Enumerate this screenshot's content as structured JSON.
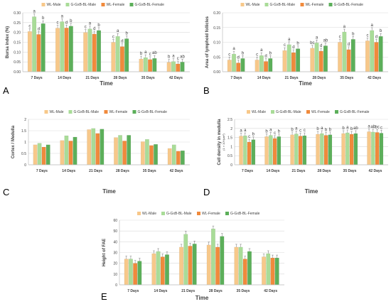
{
  "colors": {
    "WL-Male": "#f7c88a",
    "G-GxB-BL-Male": "#a9dc98",
    "WL-Female": "#f08a3c",
    "G-GxB-BL-Female": "#5caf5a",
    "grid": "#d9d9d9",
    "axis": "#bfbfbf",
    "text": "#404040"
  },
  "chart_data": [
    {
      "type": "bar",
      "panel_label": "A",
      "title": "",
      "xlabel": "Time",
      "ylabel": "Bursa index (%)",
      "categories": [
        "7 Days",
        "14 Days",
        "21 Days",
        "28 Days",
        "35 Days",
        "42 Days"
      ],
      "ylim": [
        0,
        0.3
      ],
      "yticks": [
        "0.00",
        "0.05",
        "0.10",
        "0.15",
        "0.20",
        "0.25",
        "0.30"
      ],
      "legend": "top",
      "error_bars": true,
      "series": [
        {
          "name": "WL-Male",
          "values": [
            0.205,
            0.222,
            0.2,
            0.15,
            0.065,
            0.048
          ]
        },
        {
          "name": "G-GxB-BL-Male",
          "values": [
            0.28,
            0.255,
            0.218,
            0.18,
            0.072,
            0.052
          ]
        },
        {
          "name": "WL-Female",
          "values": [
            0.19,
            0.223,
            0.192,
            0.128,
            0.062,
            0.04
          ]
        },
        {
          "name": "G-GxB-BL-Female",
          "values": [
            0.245,
            0.232,
            0.21,
            0.168,
            0.068,
            0.049
          ]
        }
      ],
      "letters": [
        [
          "c",
          "a",
          "d",
          "b"
        ],
        [
          "c",
          "a",
          "d",
          "b"
        ],
        [
          "c",
          "a",
          "d",
          "b"
        ],
        [
          "c",
          "a",
          "d",
          "b"
        ],
        [
          "b",
          "a",
          "c",
          "ab"
        ],
        [
          "b",
          "a",
          "c",
          "ab"
        ]
      ]
    },
    {
      "type": "bar",
      "panel_label": "B",
      "title": "",
      "xlabel": "Time",
      "ylabel": "Area of lymphoid follicles",
      "categories": [
        "7 Days",
        "14 Days",
        "21 Days",
        "28 Days",
        "35 Days",
        "42 Days"
      ],
      "ylim": [
        0,
        0.2
      ],
      "yticks": [
        "0.00",
        "0.05",
        "0.10",
        "0.15",
        "0.20"
      ],
      "legend": "top",
      "error_bars": true,
      "series": [
        {
          "name": "WL-Male",
          "values": [
            0.04,
            0.04,
            0.072,
            0.08,
            0.1,
            0.105
          ]
        },
        {
          "name": "G-GxB-BL-Male",
          "values": [
            0.06,
            0.055,
            0.092,
            0.098,
            0.135,
            0.14
          ]
        },
        {
          "name": "WL-Female",
          "values": [
            0.03,
            0.035,
            0.065,
            0.07,
            0.075,
            0.1
          ]
        },
        {
          "name": "G-GxB-BL-Female",
          "values": [
            0.045,
            0.045,
            0.078,
            0.088,
            0.11,
            0.12
          ]
        }
      ],
      "letters": [
        [
          "c",
          "a",
          "d",
          "b"
        ],
        [
          "c",
          "a",
          "d",
          "b"
        ],
        [
          "c",
          "a",
          "d",
          "b"
        ],
        [
          "bc",
          "a",
          "d",
          "ab"
        ],
        [
          "c",
          "a",
          "d",
          "b"
        ],
        [
          "c",
          "a",
          "d",
          "b"
        ]
      ]
    },
    {
      "type": "bar",
      "panel_label": "C",
      "title": "",
      "xlabel": "Time",
      "ylabel": "Cortex / Medulla",
      "categories": [
        "7 Days",
        "14 Days",
        "21 Days",
        "28 Days",
        "35 Days",
        "42 Days"
      ],
      "ylim": [
        0,
        2
      ],
      "yticks": [
        "0",
        "0.5",
        "1",
        "1.5",
        "2"
      ],
      "legend": "top",
      "error_bars": false,
      "series": [
        {
          "name": "WL-Male",
          "values": [
            0.88,
            1.07,
            1.55,
            1.2,
            1.02,
            0.72
          ]
        },
        {
          "name": "G-GxB-BL-Male",
          "values": [
            0.95,
            1.28,
            1.6,
            1.3,
            1.12,
            0.88
          ]
        },
        {
          "name": "WL-Female",
          "values": [
            0.78,
            1.05,
            1.38,
            1.05,
            0.85,
            0.6
          ]
        },
        {
          "name": "G-GxB-BL-Female",
          "values": [
            0.88,
            1.22,
            1.57,
            1.3,
            0.9,
            0.62
          ]
        }
      ],
      "letters": []
    },
    {
      "type": "bar",
      "panel_label": "D",
      "title": "",
      "xlabel": "Time",
      "ylabel": "Cell density in medulla",
      "ylabel2": "(1 × 10⁴/µm²)",
      "categories": [
        "7 Days",
        "14 Days",
        "21 Days",
        "28 Days",
        "35 Days",
        "42 Days"
      ],
      "ylim": [
        0,
        2.5
      ],
      "yticks": [
        "0",
        "0.5",
        "1",
        "1.5",
        "2",
        "2.5"
      ],
      "legend": "top",
      "error_bars": true,
      "series": [
        {
          "name": "WL-Male",
          "values": [
            1.58,
            1.55,
            1.65,
            1.68,
            1.72,
            1.82
          ]
        },
        {
          "name": "G-GxB-BL-Male",
          "values": [
            1.6,
            1.62,
            1.7,
            1.72,
            1.76,
            1.8
          ]
        },
        {
          "name": "WL-Female",
          "values": [
            1.25,
            1.45,
            1.58,
            1.62,
            1.68,
            1.78
          ]
        },
        {
          "name": "G-GxB-BL-Female",
          "values": [
            1.38,
            1.55,
            1.6,
            1.65,
            1.72,
            1.74
          ]
        }
      ],
      "letters": [
        [
          "a",
          "a",
          "c",
          "b"
        ],
        [
          "b",
          "a",
          "c",
          "b"
        ],
        [
          "b",
          "a",
          "c",
          "c"
        ],
        [
          "b",
          "a",
          "b",
          "b"
        ],
        [
          "b",
          "a",
          "b",
          "ab"
        ],
        [
          "a",
          "ab",
          "bc",
          "c"
        ]
      ]
    },
    {
      "type": "bar",
      "panel_label": "E",
      "title": "",
      "xlabel": "Time",
      "ylabel": "Height of FAE",
      "categories": [
        "7 Days",
        "14 Days",
        "21 Days",
        "28 Days",
        "35 Days",
        "42 Days"
      ],
      "ylim": [
        0,
        60
      ],
      "yticks": [
        "0",
        "10",
        "20",
        "30",
        "40",
        "50",
        "60"
      ],
      "legend": "top",
      "error_bars": true,
      "series": [
        {
          "name": "WL-Male",
          "values": [
            24,
            29,
            35,
            37,
            35,
            26
          ]
        },
        {
          "name": "G-GxB-BL-Male",
          "values": [
            24,
            31,
            47,
            52,
            35,
            29
          ]
        },
        {
          "name": "WL-Female",
          "values": [
            20,
            26,
            36,
            35,
            24,
            25
          ]
        },
        {
          "name": "G-GxB-BL-Female",
          "values": [
            22,
            28,
            38,
            45,
            31,
            25
          ]
        }
      ],
      "letters": []
    }
  ]
}
